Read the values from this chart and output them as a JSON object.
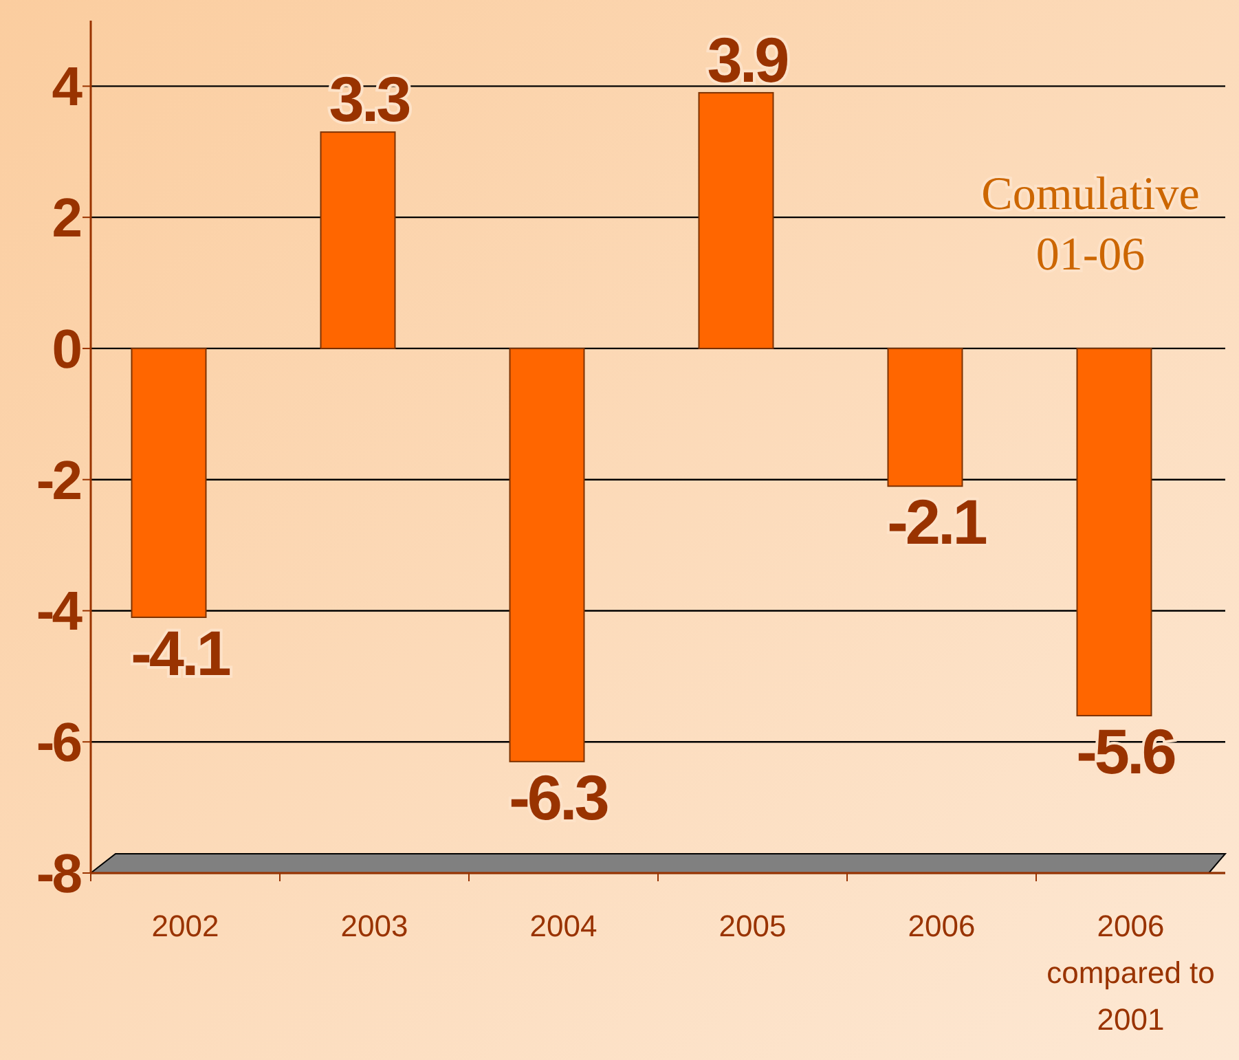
{
  "chart_data": {
    "type": "bar",
    "categories": [
      "2002",
      "2003",
      "2004",
      "2005",
      "2006",
      "2006\ncompared to\n2001"
    ],
    "values": [
      -4.1,
      3.3,
      -6.3,
      3.9,
      -2.1,
      -5.6
    ],
    "color": "#ff6600",
    "ylim": [
      -8,
      5
    ],
    "yticks": [
      -8,
      -6,
      -4,
      -2,
      0,
      2,
      4
    ],
    "grid": "y",
    "data_labels": true,
    "annotations": [
      "Comulative\n01-06"
    ]
  }
}
